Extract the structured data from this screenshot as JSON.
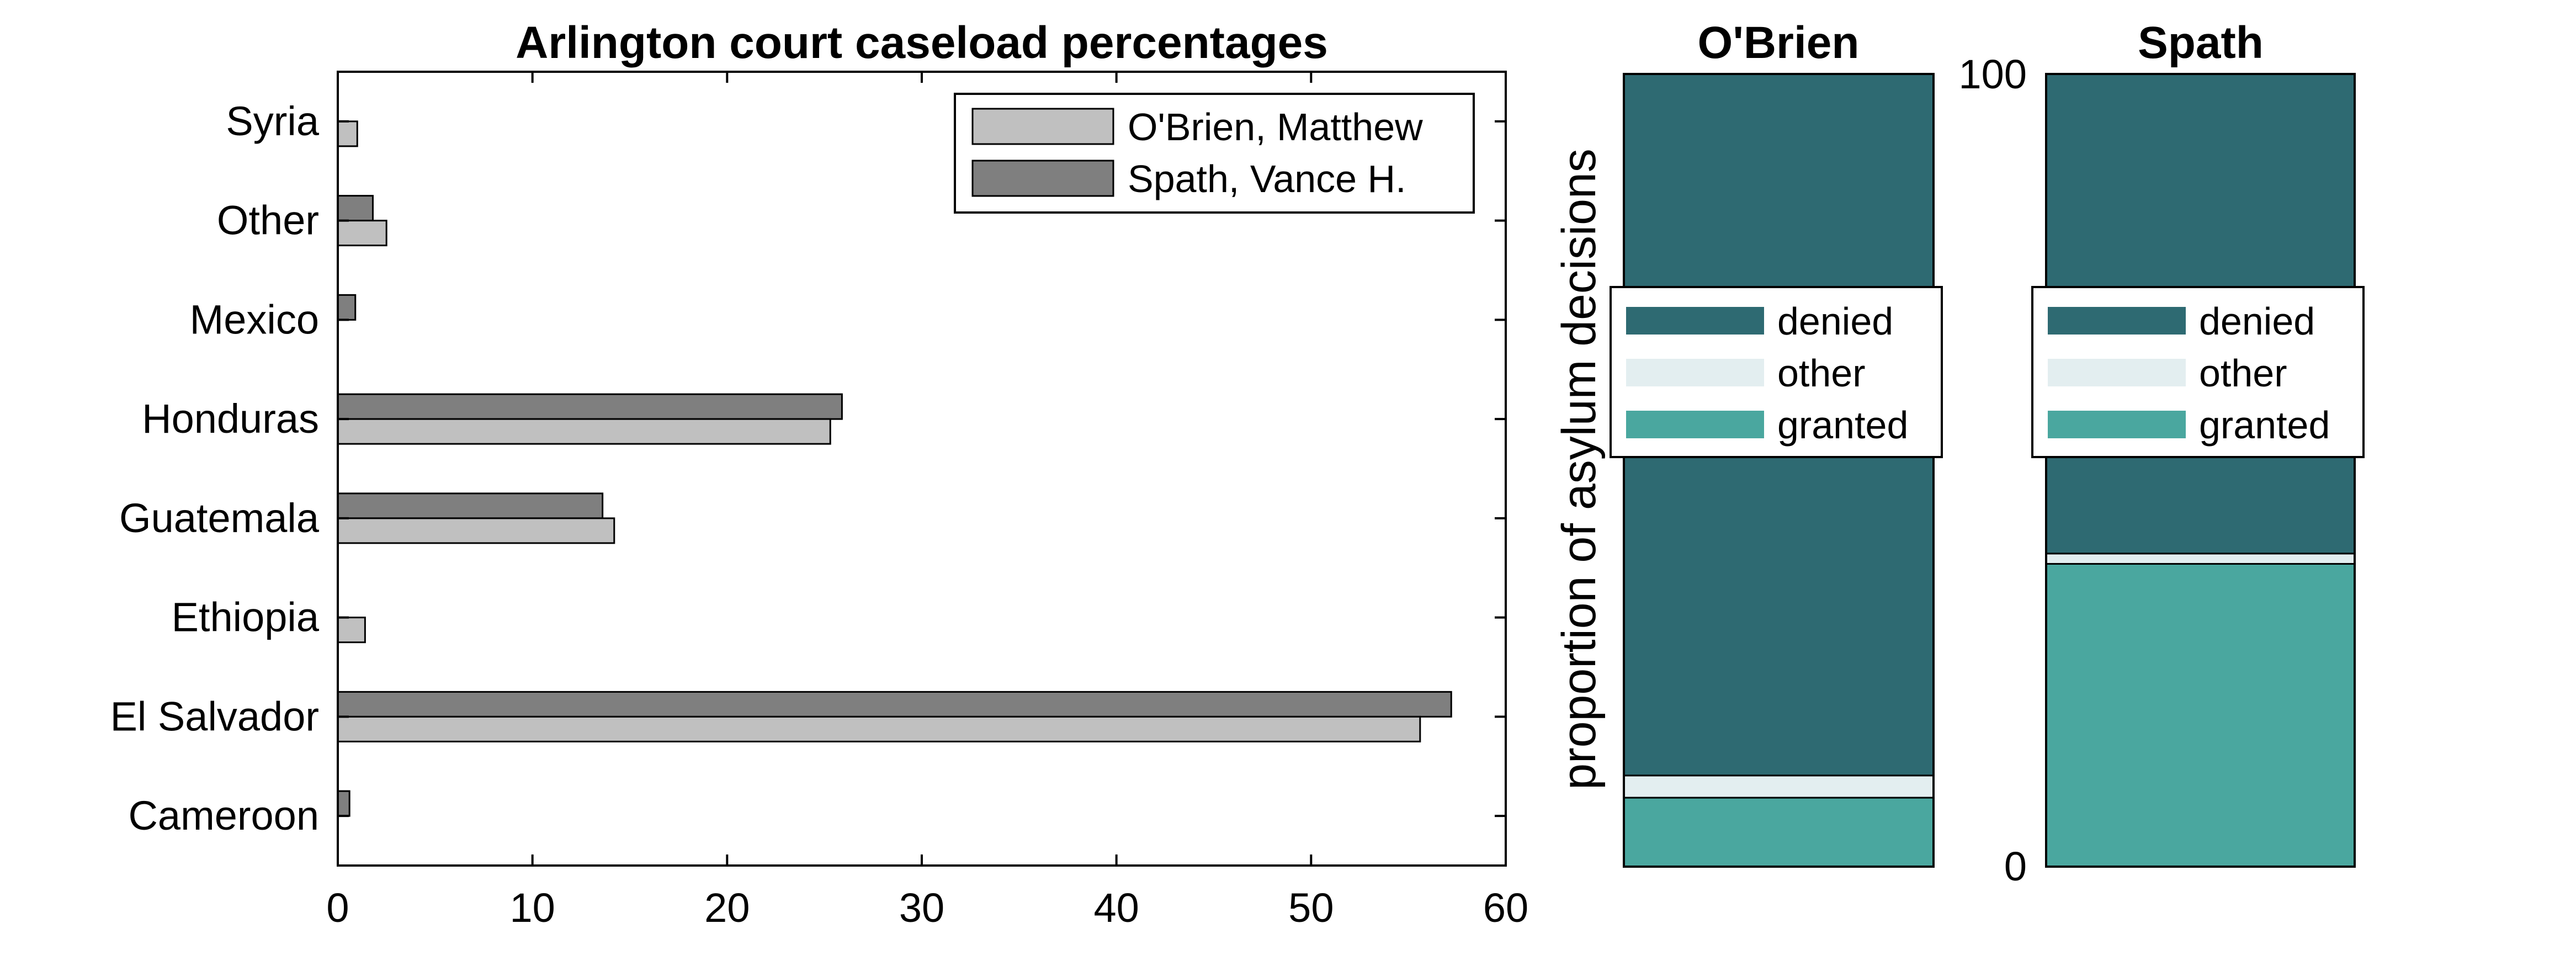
{
  "chart_data": [
    {
      "type": "bar",
      "orientation": "horizontal",
      "title": "Arlington court caseload percentages",
      "categories": [
        "Cameroon",
        "El Salvador",
        "Ethiopia",
        "Guatemala",
        "Honduras",
        "Mexico",
        "Other",
        "Syria"
      ],
      "series": [
        {
          "name": "O'Brien, Matthew",
          "color": "#c0c0c0",
          "values": [
            0,
            55.6,
            1.4,
            14.2,
            25.3,
            0,
            2.5,
            1.0
          ]
        },
        {
          "name": "Spath, Vance H.",
          "color": "#7f7f7f",
          "values": [
            0.6,
            57.2,
            0,
            13.6,
            25.9,
            0.9,
            1.8,
            0
          ]
        }
      ],
      "xlim": [
        0,
        60
      ],
      "xticks": [
        "0",
        "10",
        "20",
        "30",
        "40",
        "50",
        "60"
      ],
      "grid": false,
      "legend_position": "top-right"
    },
    {
      "type": "bar",
      "stacked": true,
      "title": "O'Brien",
      "ylabel": "proportion of asylum decisions",
      "ylim": [
        0,
        100
      ],
      "segments": [
        {
          "name": "granted",
          "value": 8.7,
          "color": "#4aa79f"
        },
        {
          "name": "other",
          "value": 2.8,
          "color": "#e3eef0"
        },
        {
          "name": "denied",
          "value": 88.5,
          "color": "#2e6a72"
        }
      ],
      "legend_position": "center"
    },
    {
      "type": "bar",
      "stacked": true,
      "title": "Spath",
      "ylim": [
        0,
        100
      ],
      "yticks": [
        "0",
        "100"
      ],
      "segments": [
        {
          "name": "granted",
          "value": 38.2,
          "color": "#4aa79f"
        },
        {
          "name": "other",
          "value": 1.3,
          "color": "#e3eef0"
        },
        {
          "name": "denied",
          "value": 60.5,
          "color": "#2e6a72"
        }
      ],
      "legend_position": "center"
    }
  ]
}
